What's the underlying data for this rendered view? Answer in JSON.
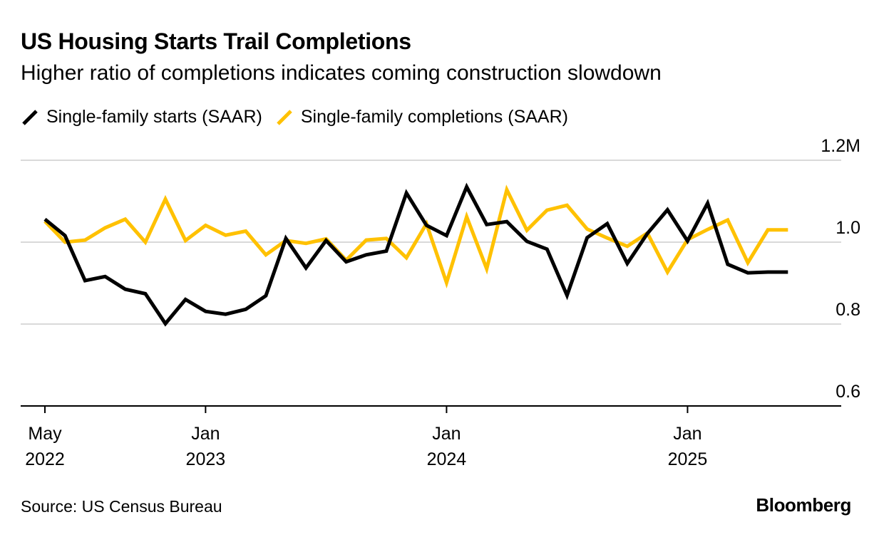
{
  "chart_data": {
    "type": "line",
    "title": "US Housing Starts Trail Completions",
    "subtitle": "Higher ratio of completions indicates coming construction slowdown",
    "source": "Source: US Census Bureau",
    "brand": "Bloomberg",
    "y_unit_label": "1.2M",
    "yticks": [
      {
        "value": 0.6,
        "label": "0.6"
      },
      {
        "value": 0.8,
        "label": "0.8"
      },
      {
        "value": 1.0,
        "label": "1.0"
      },
      {
        "value": 1.2,
        "label": "1.2M"
      }
    ],
    "ylim": [
      0.6,
      1.2
    ],
    "grid": true,
    "legend_position": "top-left",
    "x_start": "2022-05",
    "xticks": [
      {
        "date": "2022-05",
        "line1": "May",
        "line2": "2022"
      },
      {
        "date": "2023-01",
        "line1": "Jan",
        "line2": "2023"
      },
      {
        "date": "2024-01",
        "line1": "Jan",
        "line2": "2024"
      },
      {
        "date": "2025-01",
        "line1": "Jan",
        "line2": "2025"
      }
    ],
    "x": [
      "2022-05",
      "2022-06",
      "2022-07",
      "2022-08",
      "2022-09",
      "2022-10",
      "2022-11",
      "2022-12",
      "2023-01",
      "2023-02",
      "2023-03",
      "2023-04",
      "2023-05",
      "2023-06",
      "2023-07",
      "2023-08",
      "2023-09",
      "2023-10",
      "2023-11",
      "2023-12",
      "2024-01",
      "2024-02",
      "2024-03",
      "2024-04",
      "2024-05",
      "2024-06",
      "2024-07",
      "2024-08",
      "2024-09",
      "2024-10",
      "2024-11",
      "2024-12",
      "2025-01",
      "2025-02",
      "2025-03",
      "2025-04",
      "2025-05",
      "2025-06"
    ],
    "series": [
      {
        "name": "Single-family starts (SAAR)",
        "color": "#000000",
        "values": [
          1.056,
          1.016,
          0.906,
          0.916,
          0.885,
          0.874,
          0.801,
          0.86,
          0.831,
          0.824,
          0.836,
          0.869,
          1.009,
          0.937,
          1.004,
          0.952,
          0.969,
          0.978,
          1.12,
          1.041,
          1.016,
          1.135,
          1.043,
          1.05,
          1.002,
          0.983,
          0.87,
          1.011,
          1.045,
          0.948,
          1.021,
          1.079,
          1.003,
          1.095,
          0.946,
          0.925,
          0.927,
          0.927
        ]
      },
      {
        "name": "Single-family completions (SAAR)",
        "color": "#FFC100",
        "values": [
          1.051,
          1.0,
          1.005,
          1.035,
          1.056,
          1.0,
          1.105,
          1.004,
          1.041,
          1.017,
          1.027,
          0.969,
          1.004,
          0.997,
          1.008,
          0.956,
          1.005,
          1.009,
          0.962,
          1.045,
          0.901,
          1.062,
          0.935,
          1.128,
          1.029,
          1.078,
          1.09,
          1.032,
          1.01,
          0.99,
          1.022,
          0.927,
          1.006,
          1.031,
          1.054,
          0.95,
          1.03,
          1.03
        ]
      }
    ],
    "legend_entries": [
      {
        "label": "Single-family starts (SAAR)",
        "color": "#000000"
      },
      {
        "label": "Single-family completions (SAAR)",
        "color": "#FFC100"
      }
    ]
  }
}
